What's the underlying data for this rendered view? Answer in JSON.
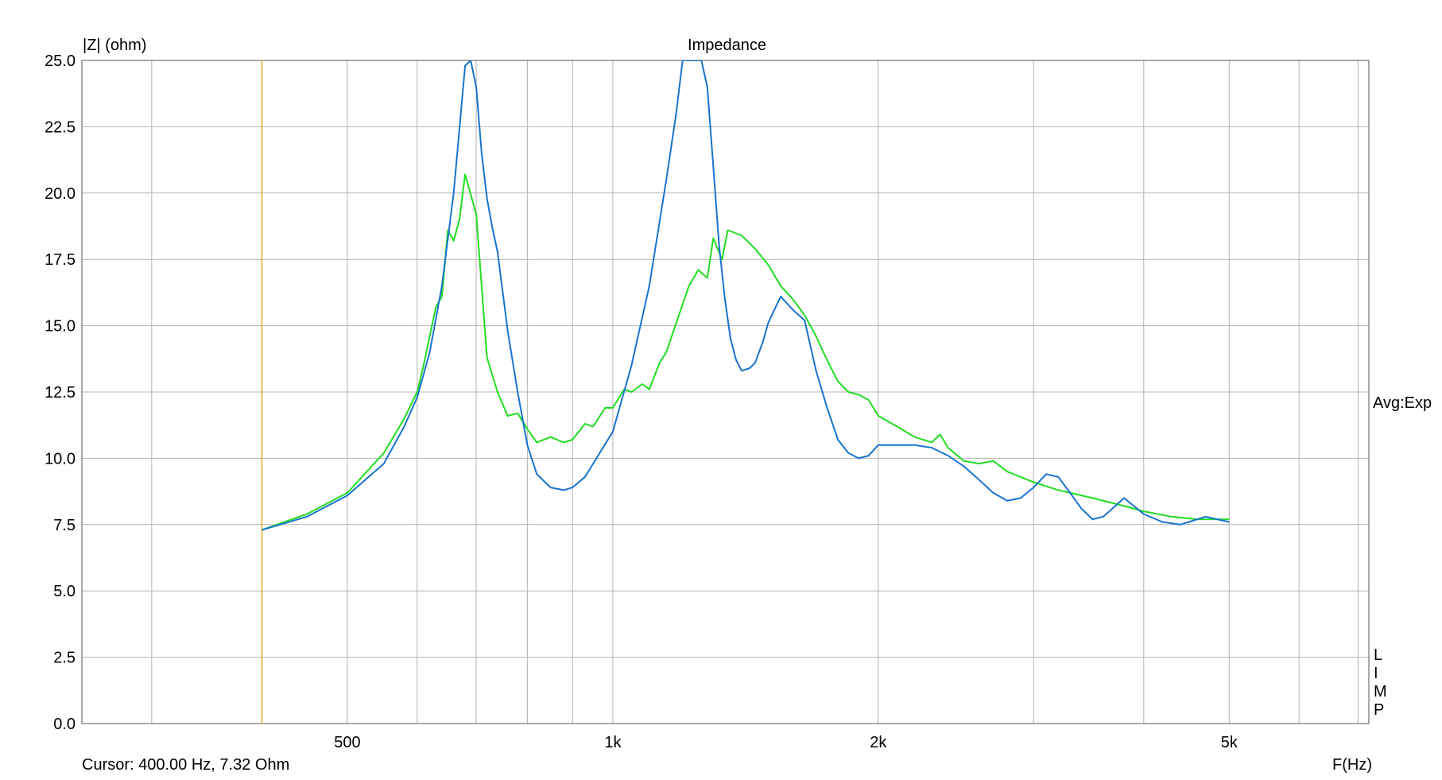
{
  "chart_data": {
    "type": "line",
    "title": "Impedance",
    "ylabel": "|Z| (ohm)",
    "xlabel": "F(Hz)",
    "xscale": "log",
    "xlim": [
      250,
      7200
    ],
    "ylim": [
      0,
      25
    ],
    "grid": true,
    "y_ticks": [
      "25.0",
      "22.5",
      "20.0",
      "17.5",
      "15.0",
      "12.5",
      "10.0",
      "7.5",
      "5.0",
      "2.5",
      "0.0"
    ],
    "y_tick_values": [
      25,
      22.5,
      20,
      17.5,
      15,
      12.5,
      10,
      7.5,
      5,
      2.5,
      0
    ],
    "x_ticks": [
      {
        "value": 500,
        "label": "500"
      },
      {
        "value": 1000,
        "label": "1k"
      },
      {
        "value": 2000,
        "label": "2k"
      },
      {
        "value": 5000,
        "label": "5k"
      }
    ],
    "x_grid": [
      300,
      400,
      500,
      600,
      700,
      800,
      900,
      1000,
      2000,
      3000,
      4000,
      5000,
      6000,
      7000
    ],
    "right_label": "Avg:Exp",
    "side_letters": [
      "L",
      "I",
      "M",
      "P"
    ],
    "cursor": {
      "x": 400,
      "text": "Cursor: 400.00 Hz, 7.32 Ohm",
      "color": "#e0b020"
    },
    "series": [
      {
        "color": "#22dd22",
        "x": [
          400,
          450,
          500,
          550,
          580,
          600,
          610,
          630,
          640,
          650,
          660,
          670,
          680,
          700,
          720,
          740,
          760,
          780,
          800,
          820,
          850,
          880,
          900,
          930,
          950,
          980,
          1000,
          1030,
          1050,
          1080,
          1100,
          1130,
          1150,
          1180,
          1200,
          1220,
          1250,
          1280,
          1300,
          1330,
          1350,
          1400,
          1450,
          1500,
          1550,
          1600,
          1650,
          1700,
          1750,
          1800,
          1850,
          1900,
          1950,
          2000,
          2100,
          2200,
          2300,
          2350,
          2400,
          2500,
          2600,
          2700,
          2800,
          3000,
          3200,
          3500,
          3800,
          4000,
          4300,
          4600,
          5000
        ],
        "y": [
          7.3,
          7.9,
          8.7,
          10.2,
          11.5,
          12.5,
          13.5,
          15.7,
          16.1,
          18.6,
          18.2,
          19.0,
          20.7,
          19.2,
          13.8,
          12.5,
          11.6,
          11.7,
          11.1,
          10.6,
          10.8,
          10.6,
          10.7,
          11.3,
          11.2,
          11.9,
          11.9,
          12.6,
          12.5,
          12.8,
          12.6,
          13.6,
          14.0,
          15.1,
          15.8,
          16.5,
          17.1,
          16.8,
          18.3,
          17.5,
          18.6,
          18.4,
          17.9,
          17.3,
          16.5,
          16.0,
          15.4,
          14.6,
          13.7,
          12.9,
          12.5,
          12.4,
          12.2,
          11.6,
          11.2,
          10.8,
          10.6,
          10.9,
          10.4,
          9.9,
          9.8,
          9.9,
          9.5,
          9.1,
          8.8,
          8.5,
          8.2,
          8.0,
          7.8,
          7.7,
          7.7
        ]
      },
      {
        "color": "#1874cd",
        "x": [
          400,
          450,
          500,
          550,
          580,
          600,
          620,
          640,
          660,
          680,
          690,
          700,
          710,
          720,
          730,
          740,
          760,
          780,
          800,
          820,
          850,
          880,
          900,
          930,
          950,
          1000,
          1050,
          1100,
          1150,
          1180,
          1200,
          1220,
          1240,
          1260,
          1280,
          1300,
          1320,
          1340,
          1360,
          1380,
          1400,
          1430,
          1450,
          1480,
          1500,
          1550,
          1600,
          1650,
          1700,
          1750,
          1800,
          1850,
          1900,
          1950,
          2000,
          2100,
          2200,
          2300,
          2400,
          2500,
          2600,
          2700,
          2800,
          2900,
          3000,
          3100,
          3200,
          3300,
          3400,
          3500,
          3600,
          3800,
          4000,
          4200,
          4400,
          4500,
          4700,
          5000
        ],
        "y": [
          7.3,
          7.8,
          8.6,
          9.8,
          11.2,
          12.3,
          14.0,
          16.5,
          20.0,
          24.8,
          25.0,
          24.0,
          21.5,
          19.8,
          18.7,
          17.8,
          14.8,
          12.5,
          10.5,
          9.4,
          8.9,
          8.8,
          8.9,
          9.3,
          9.8,
          11.0,
          13.5,
          16.5,
          20.5,
          23.0,
          25.0,
          25.0,
          25.0,
          25.0,
          24.0,
          21.0,
          18.0,
          16.0,
          14.5,
          13.7,
          13.3,
          13.4,
          13.6,
          14.4,
          15.1,
          16.1,
          15.6,
          15.2,
          13.3,
          11.9,
          10.7,
          10.2,
          10.0,
          10.1,
          10.5,
          10.5,
          10.5,
          10.4,
          10.1,
          9.7,
          9.2,
          8.7,
          8.4,
          8.5,
          8.9,
          9.4,
          9.3,
          8.7,
          8.1,
          7.7,
          7.8,
          8.5,
          7.9,
          7.6,
          7.5,
          7.6,
          7.8,
          7.6
        ]
      }
    ]
  }
}
